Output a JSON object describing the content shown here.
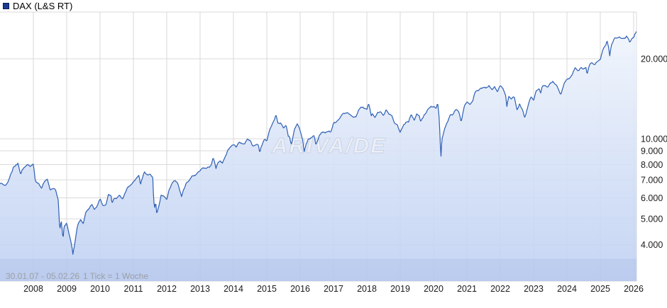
{
  "header": {
    "title": "DAX (L&S RT)"
  },
  "status_bar": {
    "date_range": "30.01.07 - 05.02.26",
    "tick_info": "1 Tick = 1 Woche"
  },
  "watermark": {
    "text": "ARIVA/DE"
  },
  "colors": {
    "line": "#2e5fb4",
    "fill_top": "#f3f7fd",
    "fill_bottom": "#bdcff2",
    "grid": "#d9d9d9",
    "band_line": "#c9d3ea",
    "band_overlay": "rgba(125,150,210,0.13)",
    "legend_square": "#1a3a94",
    "axis_text": "#1a1a1a",
    "status_text": "#9c9ea3",
    "watermark_fill": "#eef1f7",
    "watermark_stroke": "#c7cedd"
  },
  "chart_data": {
    "type": "line",
    "title": "DAX (L&S RT)",
    "x_axis": {
      "start": "30.01.07",
      "end": "05.02.26",
      "interval": "1 Woche",
      "ticks": [
        "2008",
        "2009",
        "2010",
        "2011",
        "2012",
        "2013",
        "2014",
        "2015",
        "2016",
        "2017",
        "2018",
        "2019",
        "2020",
        "2021",
        "2022",
        "2023",
        "2024",
        "2025",
        "2026"
      ]
    },
    "y_axis": {
      "scale": "log",
      "side": "right",
      "visible_range": [
        2900,
        30000
      ],
      "ticks": [
        {
          "value": 20000,
          "label": "20.000"
        },
        {
          "value": 10000,
          "label": "10.000"
        },
        {
          "value": 9000,
          "label": "9.000"
        },
        {
          "value": 8000,
          "label": "8.000"
        },
        {
          "value": 7000,
          "label": "7.000"
        },
        {
          "value": 6000,
          "label": "6.000"
        },
        {
          "value": 5000,
          "label": "5.000"
        },
        {
          "value": 4000,
          "label": "4.000"
        }
      ]
    },
    "series": [
      {
        "name": "DAX (L&S RT)",
        "color": "#2e5fb4",
        "points": [
          [
            2007.0,
            6790
          ],
          [
            2007.17,
            6715
          ],
          [
            2007.25,
            6917
          ],
          [
            2007.33,
            7409
          ],
          [
            2007.42,
            7883
          ],
          [
            2007.5,
            8007
          ],
          [
            2007.54,
            8090
          ],
          [
            2007.62,
            7310
          ],
          [
            2007.67,
            7638
          ],
          [
            2007.75,
            7861
          ],
          [
            2007.83,
            8019
          ],
          [
            2007.92,
            7870
          ],
          [
            2008.0,
            8067
          ],
          [
            2008.06,
            6940
          ],
          [
            2008.08,
            6851
          ],
          [
            2008.17,
            6748
          ],
          [
            2008.25,
            6535
          ],
          [
            2008.33,
            6948
          ],
          [
            2008.42,
            7096
          ],
          [
            2008.5,
            6418
          ],
          [
            2008.58,
            6479
          ],
          [
            2008.67,
            6422
          ],
          [
            2008.75,
            5831
          ],
          [
            2008.78,
            4780
          ],
          [
            2008.81,
            4544
          ],
          [
            2008.83,
            4987
          ],
          [
            2008.89,
            4180
          ],
          [
            2008.92,
            4669
          ],
          [
            2009.0,
            4810
          ],
          [
            2009.08,
            4338
          ],
          [
            2009.17,
            3843
          ],
          [
            2009.18,
            3666
          ],
          [
            2009.25,
            4085
          ],
          [
            2009.33,
            4769
          ],
          [
            2009.42,
            4940
          ],
          [
            2009.5,
            4809
          ],
          [
            2009.58,
            5332
          ],
          [
            2009.67,
            5464
          ],
          [
            2009.75,
            5675
          ],
          [
            2009.83,
            5415
          ],
          [
            2009.92,
            5626
          ],
          [
            2010.0,
            5957
          ],
          [
            2010.08,
            5609
          ],
          [
            2010.17,
            5598
          ],
          [
            2010.25,
            6154
          ],
          [
            2010.33,
            6136
          ],
          [
            2010.36,
            5715
          ],
          [
            2010.42,
            5964
          ],
          [
            2010.5,
            5966
          ],
          [
            2010.58,
            6148
          ],
          [
            2010.67,
            5925
          ],
          [
            2010.75,
            6229
          ],
          [
            2010.83,
            6601
          ],
          [
            2010.92,
            6688
          ],
          [
            2011.0,
            6914
          ],
          [
            2011.08,
            7077
          ],
          [
            2011.17,
            7272
          ],
          [
            2011.21,
            6680
          ],
          [
            2011.25,
            7041
          ],
          [
            2011.33,
            7514
          ],
          [
            2011.42,
            7293
          ],
          [
            2011.5,
            7376
          ],
          [
            2011.58,
            7159
          ],
          [
            2011.6,
            6236
          ],
          [
            2011.63,
            5480
          ],
          [
            2011.67,
            5785
          ],
          [
            2011.7,
            5196
          ],
          [
            2011.75,
            5502
          ],
          [
            2011.83,
            6141
          ],
          [
            2011.92,
            6088
          ],
          [
            2012.0,
            5898
          ],
          [
            2012.08,
            6459
          ],
          [
            2012.17,
            6856
          ],
          [
            2012.25,
            6947
          ],
          [
            2012.33,
            6761
          ],
          [
            2012.42,
            6264
          ],
          [
            2012.44,
            6050
          ],
          [
            2012.5,
            6416
          ],
          [
            2012.58,
            6772
          ],
          [
            2012.67,
            6971
          ],
          [
            2012.75,
            7216
          ],
          [
            2012.83,
            7260
          ],
          [
            2012.92,
            7406
          ],
          [
            2013.0,
            7612
          ],
          [
            2013.08,
            7776
          ],
          [
            2013.17,
            7741
          ],
          [
            2013.25,
            7795
          ],
          [
            2013.33,
            7914
          ],
          [
            2013.39,
            8520
          ],
          [
            2013.48,
            7730
          ],
          [
            2013.5,
            7959
          ],
          [
            2013.58,
            8276
          ],
          [
            2013.67,
            8103
          ],
          [
            2013.75,
            8594
          ],
          [
            2013.83,
            9034
          ],
          [
            2013.92,
            9405
          ],
          [
            2014.0,
            9552
          ],
          [
            2014.08,
            9306
          ],
          [
            2014.17,
            9692
          ],
          [
            2014.25,
            9556
          ],
          [
            2014.33,
            9603
          ],
          [
            2014.42,
            9943
          ],
          [
            2014.5,
            9833
          ],
          [
            2014.58,
            9407
          ],
          [
            2014.67,
            9470
          ],
          [
            2014.75,
            9474
          ],
          [
            2014.79,
            8850
          ],
          [
            2014.83,
            9327
          ],
          [
            2014.92,
            9981
          ],
          [
            2015.0,
            9806
          ],
          [
            2015.08,
            10694
          ],
          [
            2015.17,
            11402
          ],
          [
            2015.25,
            11966
          ],
          [
            2015.27,
            12374
          ],
          [
            2015.33,
            11454
          ],
          [
            2015.42,
            11414
          ],
          [
            2015.5,
            10945
          ],
          [
            2015.58,
            11309
          ],
          [
            2015.65,
            10124
          ],
          [
            2015.67,
            10259
          ],
          [
            2015.73,
            9560
          ],
          [
            2015.75,
            9660
          ],
          [
            2015.83,
            10850
          ],
          [
            2015.92,
            11382
          ],
          [
            2016.0,
            10743
          ],
          [
            2016.08,
            9798
          ],
          [
            2016.12,
            8900
          ],
          [
            2016.17,
            9495
          ],
          [
            2016.25,
            9966
          ],
          [
            2016.33,
            10039
          ],
          [
            2016.42,
            10263
          ],
          [
            2016.47,
            9557
          ],
          [
            2016.5,
            9680
          ],
          [
            2016.58,
            10337
          ],
          [
            2016.67,
            10593
          ],
          [
            2016.75,
            10511
          ],
          [
            2016.83,
            10665
          ],
          [
            2016.92,
            10640
          ],
          [
            2017.0,
            11481
          ],
          [
            2017.08,
            11535
          ],
          [
            2017.17,
            11834
          ],
          [
            2017.25,
            12313
          ],
          [
            2017.33,
            12438
          ],
          [
            2017.42,
            12615
          ],
          [
            2017.5,
            12325
          ],
          [
            2017.58,
            12118
          ],
          [
            2017.67,
            12056
          ],
          [
            2017.75,
            12829
          ],
          [
            2017.83,
            13230
          ],
          [
            2017.92,
            13024
          ],
          [
            2018.0,
            12918
          ],
          [
            2018.05,
            13560
          ],
          [
            2018.08,
            13190
          ],
          [
            2018.13,
            12107
          ],
          [
            2018.17,
            12436
          ],
          [
            2018.25,
            12097
          ],
          [
            2018.33,
            12612
          ],
          [
            2018.42,
            12604
          ],
          [
            2018.5,
            12306
          ],
          [
            2018.58,
            12806
          ],
          [
            2018.67,
            12364
          ],
          [
            2018.75,
            12247
          ],
          [
            2018.83,
            11447
          ],
          [
            2018.92,
            11257
          ],
          [
            2019.0,
            10559
          ],
          [
            2019.08,
            11173
          ],
          [
            2019.17,
            11516
          ],
          [
            2019.25,
            11526
          ],
          [
            2019.33,
            12344
          ],
          [
            2019.42,
            11727
          ],
          [
            2019.5,
            12399
          ],
          [
            2019.58,
            12189
          ],
          [
            2019.6,
            11694
          ],
          [
            2019.67,
            11939
          ],
          [
            2019.75,
            12428
          ],
          [
            2019.83,
            12867
          ],
          [
            2019.92,
            13236
          ],
          [
            2020.0,
            13249
          ],
          [
            2020.08,
            12982
          ],
          [
            2020.12,
            13680
          ],
          [
            2020.17,
            11890
          ],
          [
            2020.22,
            8450
          ],
          [
            2020.25,
            9936
          ],
          [
            2020.33,
            10862
          ],
          [
            2020.42,
            11587
          ],
          [
            2020.5,
            12311
          ],
          [
            2020.58,
            12313
          ],
          [
            2020.67,
            12945
          ],
          [
            2020.75,
            12761
          ],
          [
            2020.83,
            11556
          ],
          [
            2020.92,
            13291
          ],
          [
            2021.0,
            13719
          ],
          [
            2021.08,
            13433
          ],
          [
            2021.17,
            13786
          ],
          [
            2021.25,
            15008
          ],
          [
            2021.33,
            15136
          ],
          [
            2021.42,
            15421
          ],
          [
            2021.5,
            15531
          ],
          [
            2021.58,
            15544
          ],
          [
            2021.67,
            15835
          ],
          [
            2021.75,
            15261
          ],
          [
            2021.83,
            15689
          ],
          [
            2021.92,
            15100
          ],
          [
            2022.0,
            15885
          ],
          [
            2022.08,
            15471
          ],
          [
            2022.17,
            14461
          ],
          [
            2022.19,
            13095
          ],
          [
            2022.25,
            14415
          ],
          [
            2022.33,
            14098
          ],
          [
            2022.42,
            14388
          ],
          [
            2022.5,
            12784
          ],
          [
            2022.58,
            13484
          ],
          [
            2022.67,
            12835
          ],
          [
            2022.73,
            11980
          ],
          [
            2022.75,
            12114
          ],
          [
            2022.83,
            13254
          ],
          [
            2022.92,
            14397
          ],
          [
            2023.0,
            13924
          ],
          [
            2023.08,
            15128
          ],
          [
            2023.17,
            15365
          ],
          [
            2023.21,
            14735
          ],
          [
            2023.25,
            15629
          ],
          [
            2023.33,
            15922
          ],
          [
            2023.42,
            15664
          ],
          [
            2023.5,
            16148
          ],
          [
            2023.58,
            16447
          ],
          [
            2023.67,
            15947
          ],
          [
            2023.75,
            15387
          ],
          [
            2023.8,
            14687
          ],
          [
            2023.83,
            14810
          ],
          [
            2023.92,
            16215
          ],
          [
            2024.0,
            16752
          ],
          [
            2024.08,
            16904
          ],
          [
            2024.17,
            17678
          ],
          [
            2024.25,
            18492
          ],
          [
            2024.33,
            17932
          ],
          [
            2024.42,
            18498
          ],
          [
            2024.5,
            18235
          ],
          [
            2024.58,
            18509
          ],
          [
            2024.6,
            17400
          ],
          [
            2024.67,
            18907
          ],
          [
            2024.75,
            19325
          ],
          [
            2024.83,
            19078
          ],
          [
            2024.92,
            19626
          ],
          [
            2025.0,
            19909
          ],
          [
            2025.08,
            21732
          ],
          [
            2025.17,
            22551
          ],
          [
            2025.2,
            23350
          ],
          [
            2025.25,
            22163
          ],
          [
            2025.28,
            20370
          ],
          [
            2025.33,
            22497
          ],
          [
            2025.42,
            23997
          ],
          [
            2025.5,
            23910
          ],
          [
            2025.58,
            24066
          ],
          [
            2025.67,
            23902
          ],
          [
            2025.75,
            23881
          ],
          [
            2025.78,
            24500
          ],
          [
            2025.83,
            24120
          ],
          [
            2025.88,
            23100
          ],
          [
            2025.92,
            23600
          ],
          [
            2026.0,
            24100
          ],
          [
            2026.04,
            24900
          ],
          [
            2026.08,
            25400
          ],
          [
            2026.1,
            25150
          ]
        ]
      }
    ]
  }
}
